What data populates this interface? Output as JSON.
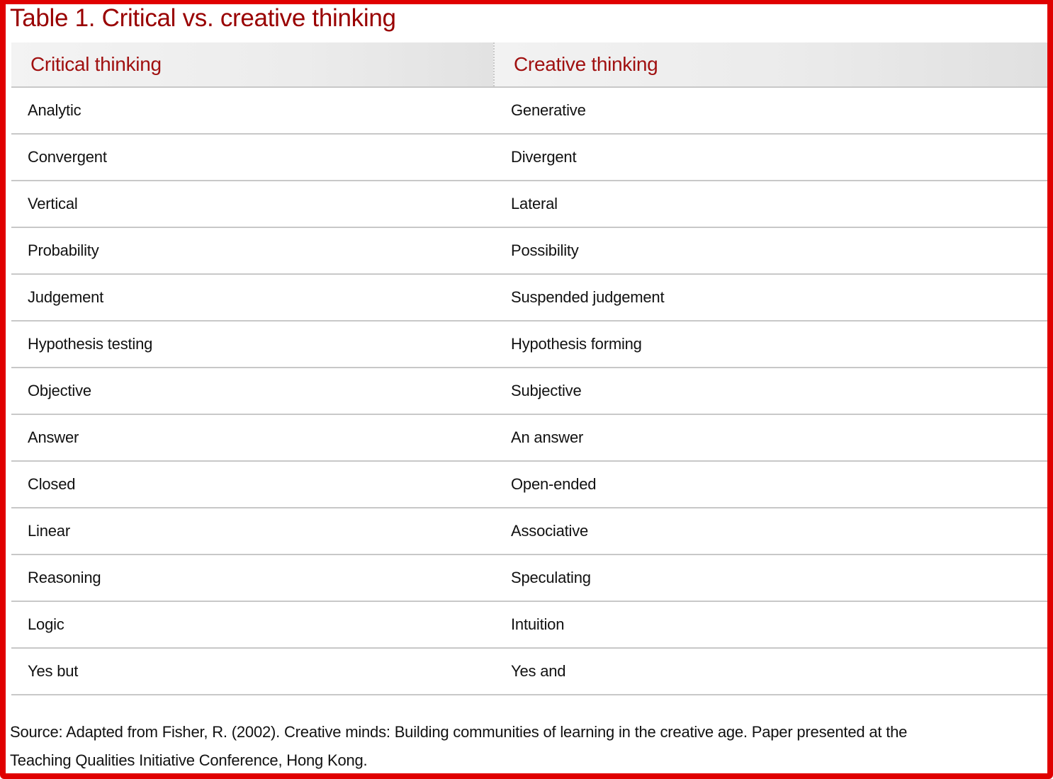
{
  "colors": {
    "frame_border": "#e00000",
    "title": "#990000",
    "header_text": "#a01010",
    "row_divider": "#c8c8c8",
    "body_text": "#111111"
  },
  "title": "Table 1. Critical vs. creative thinking",
  "table": {
    "headers": [
      "Critical thinking",
      "Creative thinking"
    ],
    "rows": [
      [
        "Analytic",
        "Generative"
      ],
      [
        "Convergent",
        "Divergent"
      ],
      [
        "Vertical",
        "Lateral"
      ],
      [
        "Probability",
        "Possibility"
      ],
      [
        "Judgement",
        "Suspended judgement"
      ],
      [
        "Hypothesis testing",
        "Hypothesis forming"
      ],
      [
        "Objective",
        "Subjective"
      ],
      [
        "Answer",
        "An answer"
      ],
      [
        "Closed",
        "Open-ended"
      ],
      [
        "Linear",
        "Associative"
      ],
      [
        "Reasoning",
        "Speculating"
      ],
      [
        "Logic",
        "Intuition"
      ],
      [
        "Yes but",
        "Yes and"
      ]
    ]
  },
  "source": {
    "line1": "Source: Adapted from Fisher, R. (2002). Creative minds: Building communities of learning in the creative age. Paper presented at the",
    "line2": "Teaching Qualities Initiative Conference, Hong Kong."
  }
}
